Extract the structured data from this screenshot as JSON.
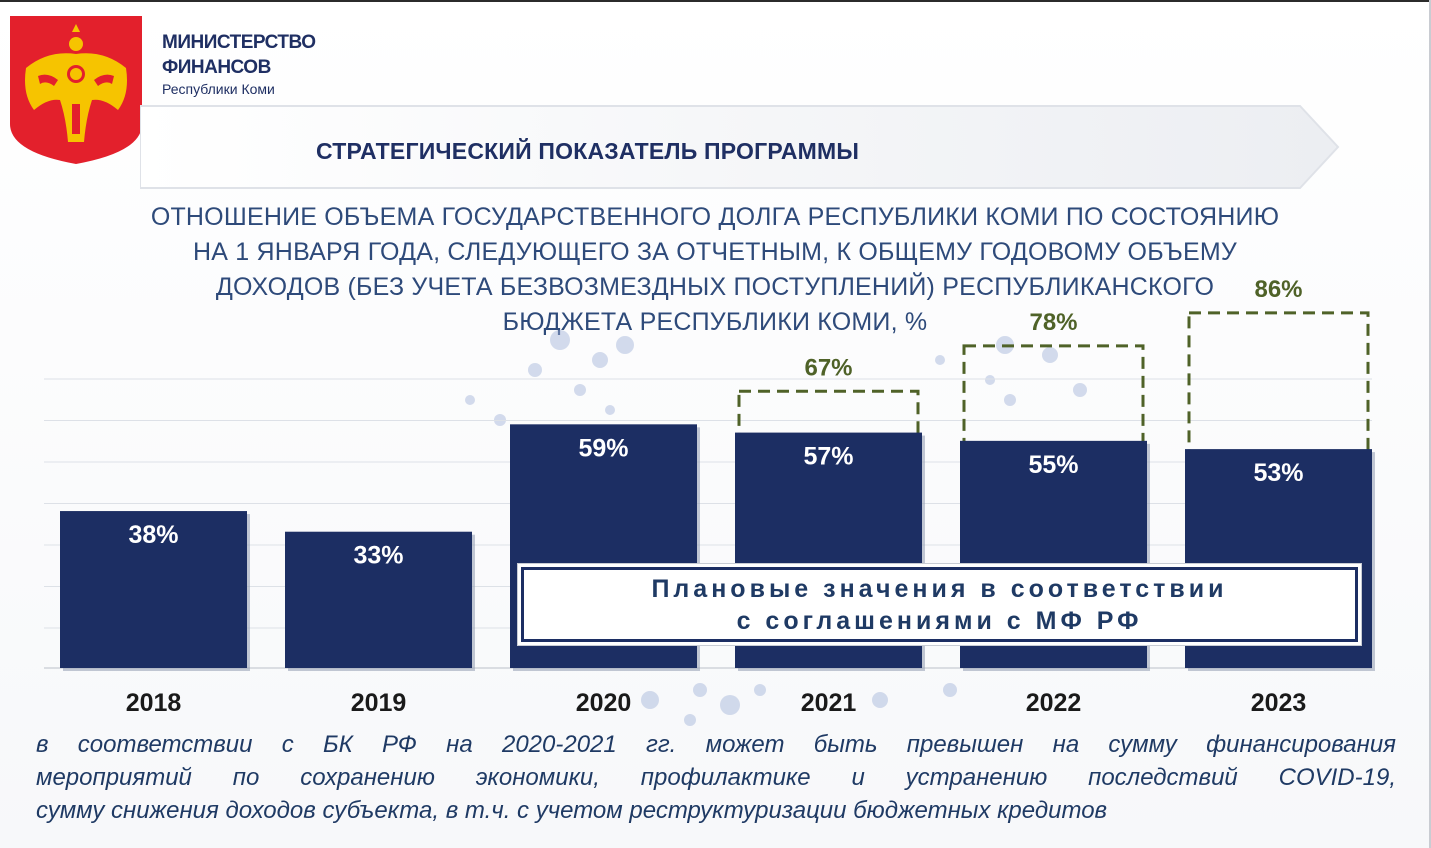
{
  "header": {
    "ministry_line1": "МИНИСТЕРСТВО",
    "ministry_line2": "ФИНАНСОВ",
    "ministry_line3": "Республики Коми",
    "banner_title": "СТРАТЕГИЧЕСКИЙ ПОКАЗАТЕЛЬ ПРОГРАММЫ"
  },
  "subtitle_lines": [
    "ОТНОШЕНИЕ ОБЪЕМА ГОСУДАРСТВЕННОГО ДОЛГА РЕСПУБЛИКИ КОМИ ПО СОСТОЯНИЮ",
    "НА 1 ЯНВАРЯ ГОДА, СЛЕДУЮЩЕГО ЗА ОТЧЕТНЫМ, К ОБЩЕМУ ГОДОВОМУ ОБЪЕМУ",
    "ДОХОДОВ (БЕЗ УЧЕТА БЕЗВОЗМЕЗДНЫХ ПОСТУПЛЕНИЙ) РЕСПУБЛИКАНСКОГО",
    "БЮДЖЕТА РЕСПУБЛИКИ КОМИ, %"
  ],
  "legend": {
    "line1": "Плановые значения в соответствии",
    "line2": "с соглашениями с МФ РФ"
  },
  "footnote_lines": [
    "в соответствии с БК РФ на 2020-2021 гг. может быть превышен на сумму финансирования",
    "мероприятий по сохранению экономики, профилактике и устранению последствий COVID-19,",
    "сумму снижения доходов субъекта, в т.ч. с учетом реструктуризации бюджетных кредитов"
  ],
  "colors": {
    "bar": "#1c2e63",
    "bar_label": "#ffffff",
    "plan_border": "#4f6228",
    "plan_label": "#4f6228",
    "text": "#1f3a64",
    "emblem_red": "#e3202c",
    "emblem_gold": "#f6c400"
  },
  "chart_data": {
    "type": "bar",
    "categories": [
      "2018",
      "2019",
      "2020",
      "2021",
      "2022",
      "2023"
    ],
    "series": [
      {
        "values": [
          38,
          33,
          59,
          57,
          55,
          53
        ]
      },
      {
        "values": [
          null,
          null,
          null,
          67,
          78,
          86
        ]
      }
    ],
    "bar_labels": [
      "38%",
      "33%",
      "59%",
      "57%",
      "55%",
      "53%"
    ],
    "plan_labels": [
      "",
      "",
      "",
      "67%",
      "78%",
      "86%"
    ],
    "grid": true,
    "title": "ОТНОШЕНИЕ ОБЪЕМА ГОСУДАРСТВЕННОГО ДОЛГА РЕСПУБЛИКИ КОМИ ПО СОСТОЯНИЮ НА 1 ЯНВАРЯ ГОДА, СЛЕДУЮЩЕГО ЗА ОТЧЕТНЫМ, К ОБЩЕМУ ГОДОВОМУ ОБЪЕМУ ДОХОДОВ (БЕЗ УЧЕТА БЕЗВОЗМЕЗДНЫХ ПОСТУПЛЕНИЙ) РЕСПУБЛИКАНСКОГО БЮДЖЕТА РЕСПУБЛИКИ КОМИ, %"
  }
}
